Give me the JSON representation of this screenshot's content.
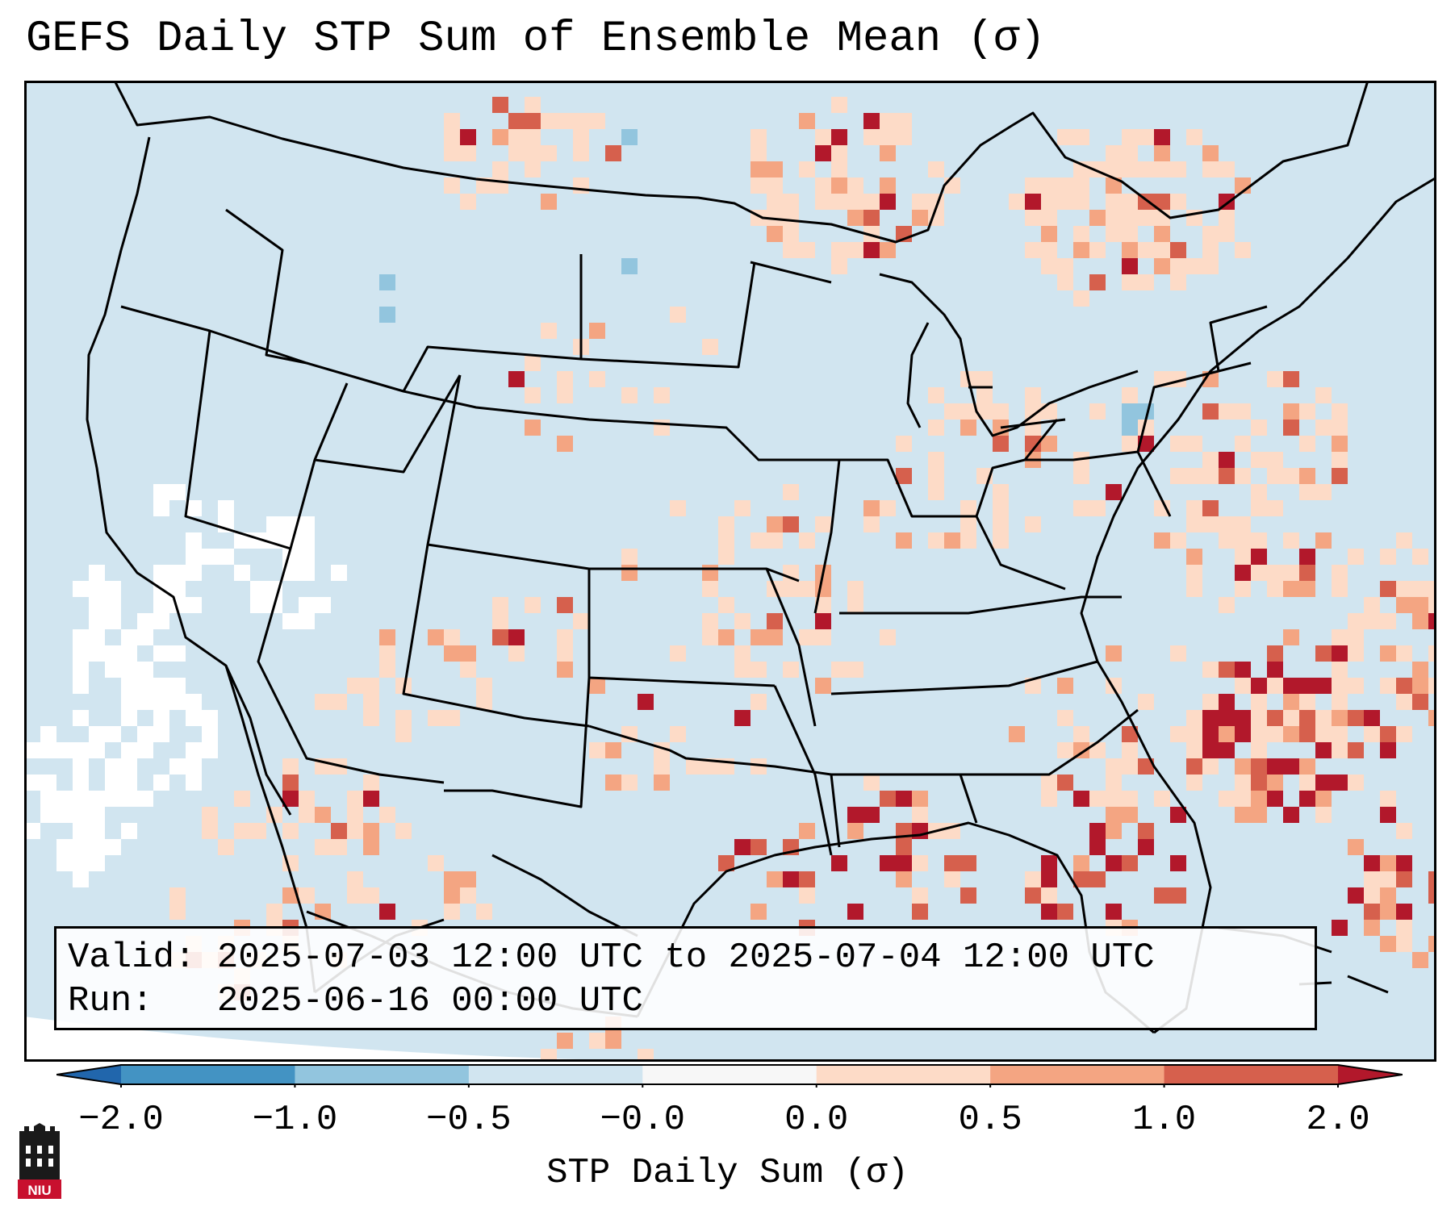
{
  "title": "GEFS Daily STP Sum of Ensemble Mean (σ)",
  "info_box": {
    "valid_prefix": "Valid: ",
    "valid_range": "2025-07-03 12:00 UTC to 2025-07-04 12:00 UTC",
    "run_prefix": "Run:   ",
    "run_time": "2025-06-16 00:00 UTC"
  },
  "colorbar": {
    "label": "STP Daily Sum (σ)",
    "ticks": [
      "−2.0",
      "−1.0",
      "−0.5",
      "−0.0",
      "0.0",
      "0.5",
      "1.0",
      "2.0"
    ],
    "bins": [
      {
        "from": -2.0,
        "to": -1.0,
        "color": "#4393c3"
      },
      {
        "from": -1.0,
        "to": -0.5,
        "color": "#92c5de"
      },
      {
        "from": -0.5,
        "to": -0.0,
        "color": "#d1e5f0"
      },
      {
        "from": -0.0,
        "to": 0.0,
        "color": "#f7f7f7"
      },
      {
        "from": 0.0,
        "to": 0.5,
        "color": "#fddbc7"
      },
      {
        "from": 0.5,
        "to": 1.0,
        "color": "#f4a582"
      },
      {
        "from": 1.0,
        "to": 2.0,
        "color": "#d6604d"
      }
    ],
    "under_color": "#2166ac",
    "over_color": "#b2182b"
  },
  "colors": {
    "background": "#d1e5f0",
    "neutral": "#ffffff",
    "light_pos": "#fddbc7",
    "mid_pos": "#f4a582",
    "high_pos": "#d6604d",
    "extreme_pos": "#b2182b",
    "light_neg": "#92c5de"
  },
  "logo_text": "NIU"
}
